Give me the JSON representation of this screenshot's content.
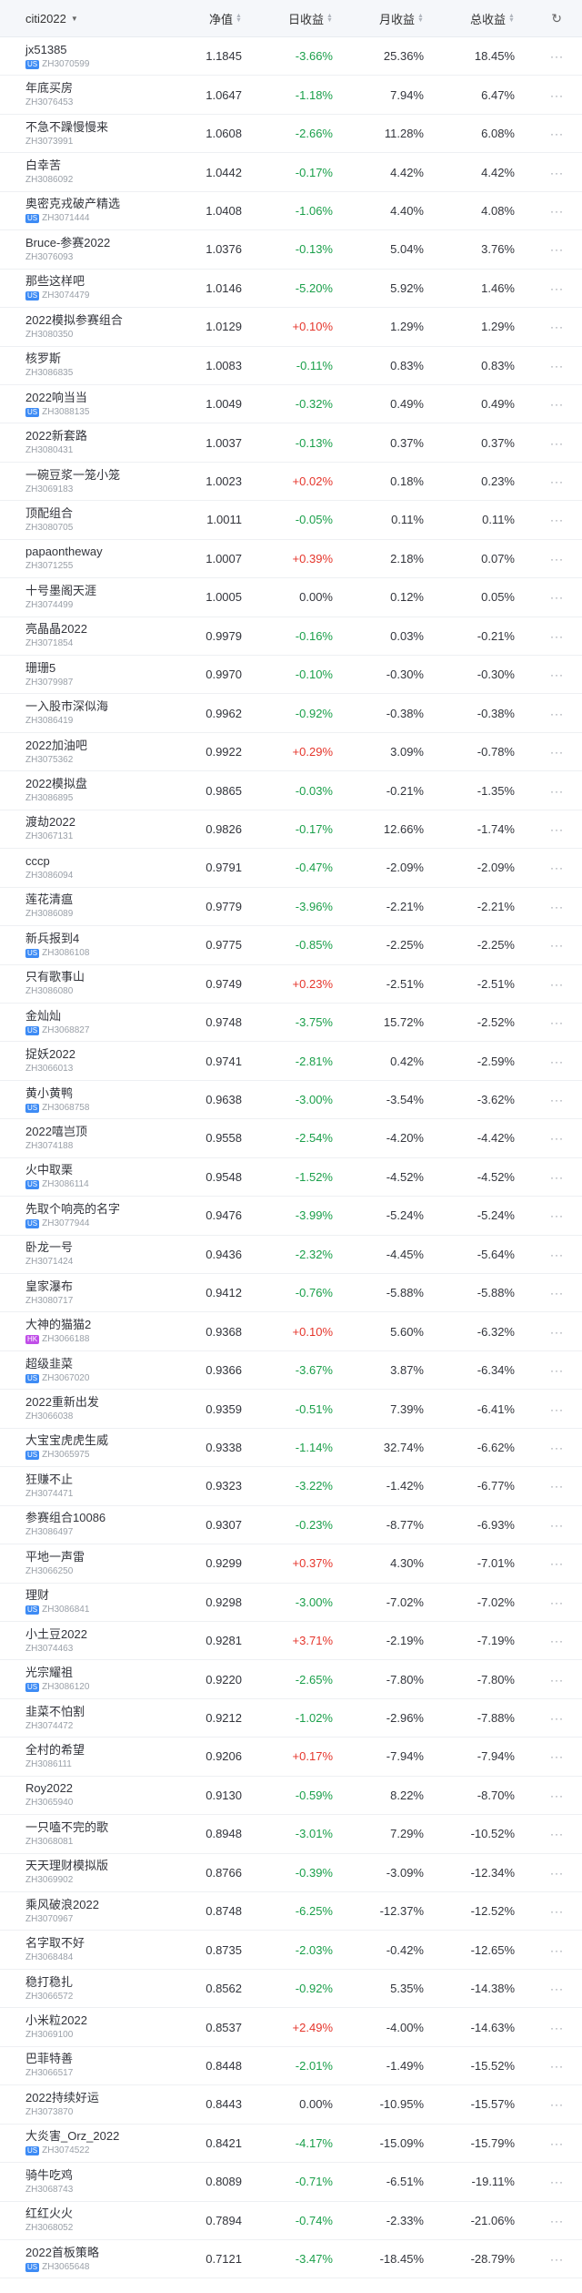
{
  "header": {
    "group_label": "citi2022",
    "nav_label": "净值",
    "day_label": "日收益",
    "month_label": "月收益",
    "total_label": "总收益",
    "refresh_icon": "refresh-icon"
  },
  "colors": {
    "up": "#e5362c",
    "down": "#1a9f4a",
    "tag_us": "#3d8bf5",
    "tag_hk": "#c04ee8"
  },
  "more_label": "···",
  "rows": [
    {
      "name": "jx51385",
      "tag": "US",
      "code": "ZH3070599",
      "nav": "1.1845",
      "day": "-3.66%",
      "month": "25.36%",
      "total": "18.45%"
    },
    {
      "name": "年底买房",
      "tag": "",
      "code": "ZH3076453",
      "nav": "1.0647",
      "day": "-1.18%",
      "month": "7.94%",
      "total": "6.47%"
    },
    {
      "name": "不急不躁慢慢来",
      "tag": "",
      "code": "ZH3073991",
      "nav": "1.0608",
      "day": "-2.66%",
      "month": "11.28%",
      "total": "6.08%"
    },
    {
      "name": "白幸苦",
      "tag": "",
      "code": "ZH3086092",
      "nav": "1.0442",
      "day": "-0.17%",
      "month": "4.42%",
      "total": "4.42%"
    },
    {
      "name": "奥密克戎破产精选",
      "tag": "US",
      "code": "ZH3071444",
      "nav": "1.0408",
      "day": "-1.06%",
      "month": "4.40%",
      "total": "4.08%"
    },
    {
      "name": "Bruce-参赛2022",
      "tag": "",
      "code": "ZH3076093",
      "nav": "1.0376",
      "day": "-0.13%",
      "month": "5.04%",
      "total": "3.76%"
    },
    {
      "name": "那些这样吧",
      "tag": "US",
      "code": "ZH3074479",
      "nav": "1.0146",
      "day": "-5.20%",
      "month": "5.92%",
      "total": "1.46%"
    },
    {
      "name": "2022模拟参赛组合",
      "tag": "",
      "code": "ZH3080350",
      "nav": "1.0129",
      "day": "+0.10%",
      "month": "1.29%",
      "total": "1.29%"
    },
    {
      "name": "核罗斯",
      "tag": "",
      "code": "ZH3086835",
      "nav": "1.0083",
      "day": "-0.11%",
      "month": "0.83%",
      "total": "0.83%"
    },
    {
      "name": "2022响当当",
      "tag": "US",
      "code": "ZH3088135",
      "nav": "1.0049",
      "day": "-0.32%",
      "month": "0.49%",
      "total": "0.49%"
    },
    {
      "name": "2022新套路",
      "tag": "",
      "code": "ZH3080431",
      "nav": "1.0037",
      "day": "-0.13%",
      "month": "0.37%",
      "total": "0.37%"
    },
    {
      "name": "一碗豆浆一笼小笼",
      "tag": "",
      "code": "ZH3069183",
      "nav": "1.0023",
      "day": "+0.02%",
      "month": "0.18%",
      "total": "0.23%"
    },
    {
      "name": "顶配组合",
      "tag": "",
      "code": "ZH3080705",
      "nav": "1.0011",
      "day": "-0.05%",
      "month": "0.11%",
      "total": "0.11%"
    },
    {
      "name": "papaontheway",
      "tag": "",
      "code": "ZH3071255",
      "nav": "1.0007",
      "day": "+0.39%",
      "month": "2.18%",
      "total": "0.07%"
    },
    {
      "name": "十号墨阁天涯",
      "tag": "",
      "code": "ZH3074499",
      "nav": "1.0005",
      "day": "0.00%",
      "month": "0.12%",
      "total": "0.05%"
    },
    {
      "name": "亮晶晶2022",
      "tag": "",
      "code": "ZH3071854",
      "nav": "0.9979",
      "day": "-0.16%",
      "month": "0.03%",
      "total": "-0.21%"
    },
    {
      "name": "珊珊5",
      "tag": "",
      "code": "ZH3079987",
      "nav": "0.9970",
      "day": "-0.10%",
      "month": "-0.30%",
      "total": "-0.30%"
    },
    {
      "name": "一入股市深似海",
      "tag": "",
      "code": "ZH3086419",
      "nav": "0.9962",
      "day": "-0.92%",
      "month": "-0.38%",
      "total": "-0.38%"
    },
    {
      "name": "2022加油吧",
      "tag": "",
      "code": "ZH3075362",
      "nav": "0.9922",
      "day": "+0.29%",
      "month": "3.09%",
      "total": "-0.78%"
    },
    {
      "name": "2022模拟盘",
      "tag": "",
      "code": "ZH3086895",
      "nav": "0.9865",
      "day": "-0.03%",
      "month": "-0.21%",
      "total": "-1.35%"
    },
    {
      "name": "渡劫2022",
      "tag": "",
      "code": "ZH3067131",
      "nav": "0.9826",
      "day": "-0.17%",
      "month": "12.66%",
      "total": "-1.74%"
    },
    {
      "name": "cccp",
      "tag": "",
      "code": "ZH3086094",
      "nav": "0.9791",
      "day": "-0.47%",
      "month": "-2.09%",
      "total": "-2.09%"
    },
    {
      "name": "莲花清瘟",
      "tag": "",
      "code": "ZH3086089",
      "nav": "0.9779",
      "day": "-3.96%",
      "month": "-2.21%",
      "total": "-2.21%"
    },
    {
      "name": "新兵报到4",
      "tag": "US",
      "code": "ZH3086108",
      "nav": "0.9775",
      "day": "-0.85%",
      "month": "-2.25%",
      "total": "-2.25%"
    },
    {
      "name": "只有歌事山",
      "tag": "",
      "code": "ZH3086080",
      "nav": "0.9749",
      "day": "+0.23%",
      "month": "-2.51%",
      "total": "-2.51%"
    },
    {
      "name": "金灿灿",
      "tag": "US",
      "code": "ZH3068827",
      "nav": "0.9748",
      "day": "-3.75%",
      "month": "15.72%",
      "total": "-2.52%"
    },
    {
      "name": "捉妖2022",
      "tag": "",
      "code": "ZH3066013",
      "nav": "0.9741",
      "day": "-2.81%",
      "month": "0.42%",
      "total": "-2.59%"
    },
    {
      "name": "黄小黄鸭",
      "tag": "US",
      "code": "ZH3068758",
      "nav": "0.9638",
      "day": "-3.00%",
      "month": "-3.54%",
      "total": "-3.62%"
    },
    {
      "name": "2022嘻岂顶",
      "tag": "",
      "code": "ZH3074188",
      "nav": "0.9558",
      "day": "-2.54%",
      "month": "-4.20%",
      "total": "-4.42%"
    },
    {
      "name": "火中取栗",
      "tag": "US",
      "code": "ZH3086114",
      "nav": "0.9548",
      "day": "-1.52%",
      "month": "-4.52%",
      "total": "-4.52%"
    },
    {
      "name": "先取个响亮的名字",
      "tag": "US",
      "code": "ZH3077944",
      "nav": "0.9476",
      "day": "-3.99%",
      "month": "-5.24%",
      "total": "-5.24%"
    },
    {
      "name": "卧龙一号",
      "tag": "",
      "code": "ZH3071424",
      "nav": "0.9436",
      "day": "-2.32%",
      "month": "-4.45%",
      "total": "-5.64%"
    },
    {
      "name": "皇家瀑布",
      "tag": "",
      "code": "ZH3080717",
      "nav": "0.9412",
      "day": "-0.76%",
      "month": "-5.88%",
      "total": "-5.88%"
    },
    {
      "name": "大神的猫猫2",
      "tag": "HK",
      "code": "ZH3066188",
      "nav": "0.9368",
      "day": "+0.10%",
      "month": "5.60%",
      "total": "-6.32%"
    },
    {
      "name": "超级韭菜",
      "tag": "US",
      "code": "ZH3067020",
      "nav": "0.9366",
      "day": "-3.67%",
      "month": "3.87%",
      "total": "-6.34%"
    },
    {
      "name": "2022重新出发",
      "tag": "",
      "code": "ZH3066038",
      "nav": "0.9359",
      "day": "-0.51%",
      "month": "7.39%",
      "total": "-6.41%"
    },
    {
      "name": "大宝宝虎虎生威",
      "tag": "US",
      "code": "ZH3065975",
      "nav": "0.9338",
      "day": "-1.14%",
      "month": "32.74%",
      "total": "-6.62%"
    },
    {
      "name": "狂赚不止",
      "tag": "",
      "code": "ZH3074471",
      "nav": "0.9323",
      "day": "-3.22%",
      "month": "-1.42%",
      "total": "-6.77%"
    },
    {
      "name": "参赛组合10086",
      "tag": "",
      "code": "ZH3086497",
      "nav": "0.9307",
      "day": "-0.23%",
      "month": "-8.77%",
      "total": "-6.93%"
    },
    {
      "name": "平地一声雷",
      "tag": "",
      "code": "ZH3066250",
      "nav": "0.9299",
      "day": "+0.37%",
      "month": "4.30%",
      "total": "-7.01%"
    },
    {
      "name": "理财",
      "tag": "US",
      "code": "ZH3086841",
      "nav": "0.9298",
      "day": "-3.00%",
      "month": "-7.02%",
      "total": "-7.02%"
    },
    {
      "name": "小土豆2022",
      "tag": "",
      "code": "ZH3074463",
      "nav": "0.9281",
      "day": "+3.71%",
      "month": "-2.19%",
      "total": "-7.19%"
    },
    {
      "name": "光宗耀祖",
      "tag": "US",
      "code": "ZH3086120",
      "nav": "0.9220",
      "day": "-2.65%",
      "month": "-7.80%",
      "total": "-7.80%"
    },
    {
      "name": "韭菜不怕割",
      "tag": "",
      "code": "ZH3074472",
      "nav": "0.9212",
      "day": "-1.02%",
      "month": "-2.96%",
      "total": "-7.88%"
    },
    {
      "name": "全村的希望",
      "tag": "",
      "code": "ZH3086111",
      "nav": "0.9206",
      "day": "+0.17%",
      "month": "-7.94%",
      "total": "-7.94%"
    },
    {
      "name": "Roy2022",
      "tag": "",
      "code": "ZH3065940",
      "nav": "0.9130",
      "day": "-0.59%",
      "month": "8.22%",
      "total": "-8.70%"
    },
    {
      "name": "一只嗑不完的歌",
      "tag": "",
      "code": "ZH3068081",
      "nav": "0.8948",
      "day": "-3.01%",
      "month": "7.29%",
      "total": "-10.52%"
    },
    {
      "name": "天天理财模拟版",
      "tag": "",
      "code": "ZH3069902",
      "nav": "0.8766",
      "day": "-0.39%",
      "month": "-3.09%",
      "total": "-12.34%"
    },
    {
      "name": "乘风破浪2022",
      "tag": "",
      "code": "ZH3070967",
      "nav": "0.8748",
      "day": "-6.25%",
      "month": "-12.37%",
      "total": "-12.52%"
    },
    {
      "name": "名字取不好",
      "tag": "",
      "code": "ZH3068484",
      "nav": "0.8735",
      "day": "-2.03%",
      "month": "-0.42%",
      "total": "-12.65%"
    },
    {
      "name": "稳打稳扎",
      "tag": "",
      "code": "ZH3066572",
      "nav": "0.8562",
      "day": "-0.92%",
      "month": "5.35%",
      "total": "-14.38%"
    },
    {
      "name": "小米粒2022",
      "tag": "",
      "code": "ZH3069100",
      "nav": "0.8537",
      "day": "+2.49%",
      "month": "-4.00%",
      "total": "-14.63%"
    },
    {
      "name": "巴菲特善",
      "tag": "",
      "code": "ZH3066517",
      "nav": "0.8448",
      "day": "-2.01%",
      "month": "-1.49%",
      "total": "-15.52%"
    },
    {
      "name": "2022持续好运",
      "tag": "",
      "code": "ZH3073870",
      "nav": "0.8443",
      "day": "0.00%",
      "month": "-10.95%",
      "total": "-15.57%"
    },
    {
      "name": "大炎害_Orz_2022",
      "tag": "US",
      "code": "ZH3074522",
      "nav": "0.8421",
      "day": "-4.17%",
      "month": "-15.09%",
      "total": "-15.79%"
    },
    {
      "name": "骑牛吃鸡",
      "tag": "",
      "code": "ZH3068743",
      "nav": "0.8089",
      "day": "-0.71%",
      "month": "-6.51%",
      "total": "-19.11%"
    },
    {
      "name": "红红火火",
      "tag": "",
      "code": "ZH3068052",
      "nav": "0.7894",
      "day": "-0.74%",
      "month": "-2.33%",
      "total": "-21.06%"
    },
    {
      "name": "2022首板策略",
      "tag": "US",
      "code": "ZH3065648",
      "nav": "0.7121",
      "day": "-3.47%",
      "month": "-18.45%",
      "total": "-28.79%"
    }
  ]
}
